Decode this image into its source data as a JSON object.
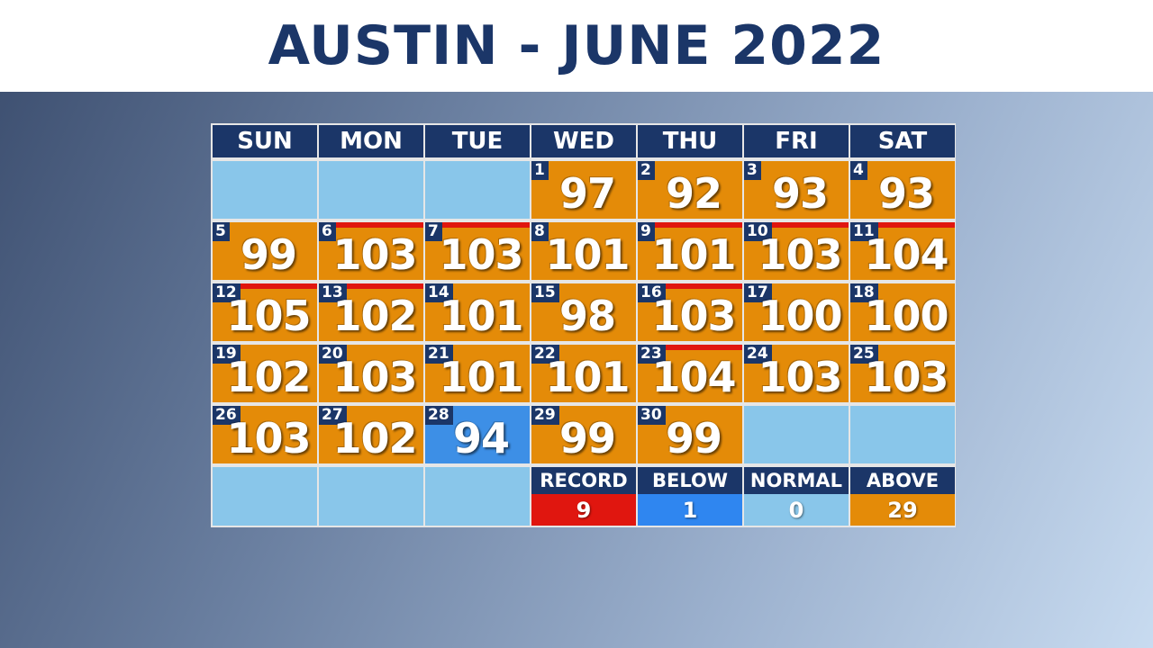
{
  "title": "AUSTIN - JUNE 2022",
  "weekdays": [
    "SUN",
    "MON",
    "TUE",
    "WED",
    "THU",
    "FRI",
    "SAT"
  ],
  "days": [
    {
      "day": "1",
      "temp": "97",
      "status": "above",
      "record": false
    },
    {
      "day": "2",
      "temp": "92",
      "status": "above",
      "record": false
    },
    {
      "day": "3",
      "temp": "93",
      "status": "above",
      "record": false
    },
    {
      "day": "4",
      "temp": "93",
      "status": "above",
      "record": false
    },
    {
      "day": "5",
      "temp": "99",
      "status": "above",
      "record": false
    },
    {
      "day": "6",
      "temp": "103",
      "status": "above",
      "record": true
    },
    {
      "day": "7",
      "temp": "103",
      "status": "above",
      "record": true
    },
    {
      "day": "8",
      "temp": "101",
      "status": "above",
      "record": false
    },
    {
      "day": "9",
      "temp": "101",
      "status": "above",
      "record": true
    },
    {
      "day": "10",
      "temp": "103",
      "status": "above",
      "record": true
    },
    {
      "day": "11",
      "temp": "104",
      "status": "above",
      "record": true
    },
    {
      "day": "12",
      "temp": "105",
      "status": "above",
      "record": true
    },
    {
      "day": "13",
      "temp": "102",
      "status": "above",
      "record": true
    },
    {
      "day": "14",
      "temp": "101",
      "status": "above",
      "record": false
    },
    {
      "day": "15",
      "temp": "98",
      "status": "above",
      "record": false
    },
    {
      "day": "16",
      "temp": "103",
      "status": "above",
      "record": true
    },
    {
      "day": "17",
      "temp": "100",
      "status": "above",
      "record": false
    },
    {
      "day": "18",
      "temp": "100",
      "status": "above",
      "record": false
    },
    {
      "day": "19",
      "temp": "102",
      "status": "above",
      "record": false
    },
    {
      "day": "20",
      "temp": "103",
      "status": "above",
      "record": false
    },
    {
      "day": "21",
      "temp": "101",
      "status": "above",
      "record": false
    },
    {
      "day": "22",
      "temp": "101",
      "status": "above",
      "record": false
    },
    {
      "day": "23",
      "temp": "104",
      "status": "above",
      "record": true
    },
    {
      "day": "24",
      "temp": "103",
      "status": "above",
      "record": false
    },
    {
      "day": "25",
      "temp": "103",
      "status": "above",
      "record": false
    },
    {
      "day": "26",
      "temp": "103",
      "status": "above",
      "record": false
    },
    {
      "day": "27",
      "temp": "102",
      "status": "above",
      "record": false
    },
    {
      "day": "28",
      "temp": "94",
      "status": "below",
      "record": false
    },
    {
      "day": "29",
      "temp": "99",
      "status": "above",
      "record": false
    },
    {
      "day": "30",
      "temp": "99",
      "status": "above",
      "record": false
    }
  ],
  "first_weekday_index": 3,
  "legend": [
    {
      "label": "RECORD",
      "value": "9",
      "kind": "record"
    },
    {
      "label": "BELOW",
      "value": "1",
      "kind": "below"
    },
    {
      "label": "NORMAL",
      "value": "0",
      "kind": "normal"
    },
    {
      "label": "ABOVE",
      "value": "29",
      "kind": "above"
    }
  ],
  "colors": {
    "navy": "#1b3668",
    "above": "#e48b08",
    "below": "#3d8fe6",
    "normal": "#89c6ea",
    "record": "#e0160f"
  }
}
